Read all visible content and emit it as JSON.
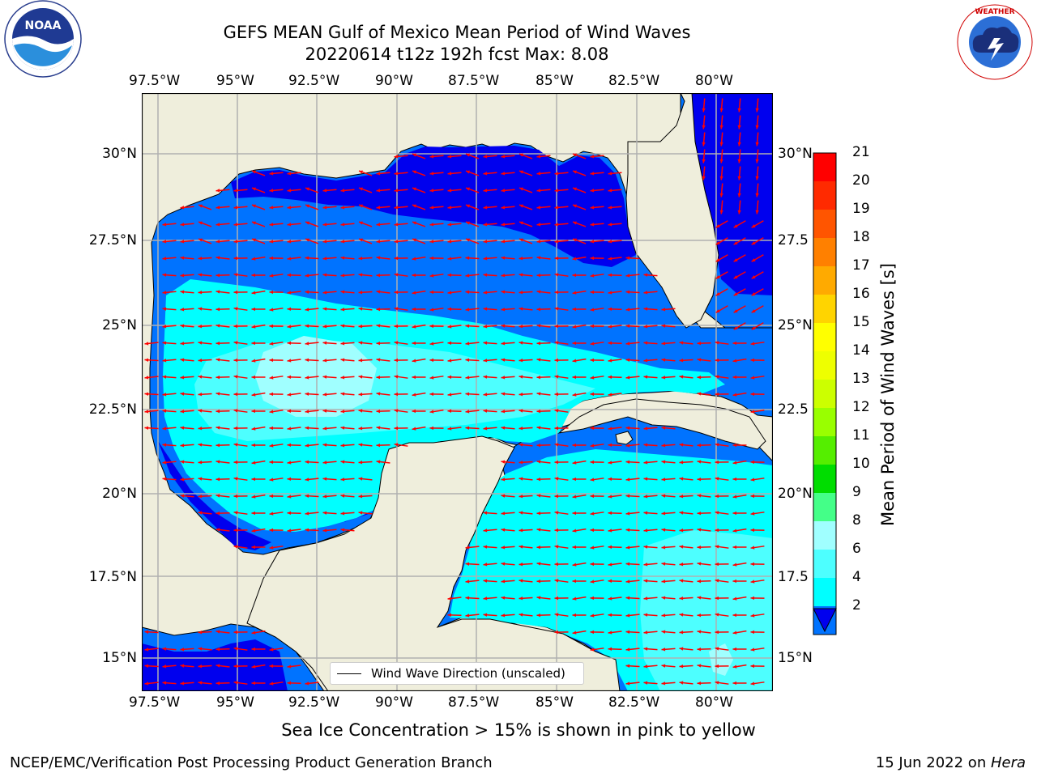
{
  "title": {
    "line1": "GEFS MEAN Gulf of Mexico Mean Period of Wind Waves",
    "line2": "20220614 t12z 192h fcst   Max: 8.08"
  },
  "logos": {
    "noaa": {
      "text": "NOAA",
      "ring_text": "NATIONAL OCEANIC AND ATMOSPHERIC ADMINISTRATION · U.S. DEPARTMENT OF COMMERCE"
    },
    "nws": {
      "ring_text": "NATIONAL WEATHER SERVICE"
    }
  },
  "map": {
    "lon_labels": [
      "97.5°W",
      "95°W",
      "92.5°W",
      "90°W",
      "87.5°W",
      "85°W",
      "82.5°W",
      "80°W"
    ],
    "lat_labels_left": [
      "30°N",
      "27.5°N",
      "25°N",
      "22.5°N",
      "20°N",
      "17.5°N",
      "15°N"
    ],
    "lat_labels_right": [
      "30°N",
      "27.5",
      "25°N",
      "22.5",
      "20°N",
      "17.5",
      "15°N"
    ],
    "legend_label": "Wind Wave Direction (unscaled)",
    "colors": {
      "land": "#efeedc",
      "ocean_2_4": "#0073ff",
      "ocean_1_2": "#0000ee",
      "ocean_4_6": "#00ffff",
      "ocean_6_8": "#4dffff",
      "ocean_8_9": "#a0ffff",
      "arrow": "#ff0000",
      "grid": "#b0b0b0"
    }
  },
  "colorbar": {
    "label": "Mean Period of Wind Waves [s]",
    "ticks": [
      "21",
      "20",
      "19",
      "18",
      "17",
      "16",
      "15",
      "14",
      "13",
      "12",
      "11",
      "10",
      "9",
      "8",
      "6",
      "4",
      "2"
    ],
    "colors": [
      "#ff0000",
      "#ff2a00",
      "#ff5500",
      "#ff8000",
      "#ffaa00",
      "#ffd400",
      "#ffff00",
      "#eeff00",
      "#ccff00",
      "#99ff00",
      "#55ee00",
      "#00dd00",
      "#44ff88",
      "#a0ffff",
      "#4dffff",
      "#00ffff",
      "#0073ff"
    ],
    "extend_color": "#0000ee"
  },
  "footer": {
    "ice_note": "Sea Ice Concentration > 15% is shown in pink to yellow",
    "left": "NCEP/EMC/Verification Post Processing Product Generation Branch",
    "right_date": "15 Jun 2022 on ",
    "right_host": "Hera"
  }
}
